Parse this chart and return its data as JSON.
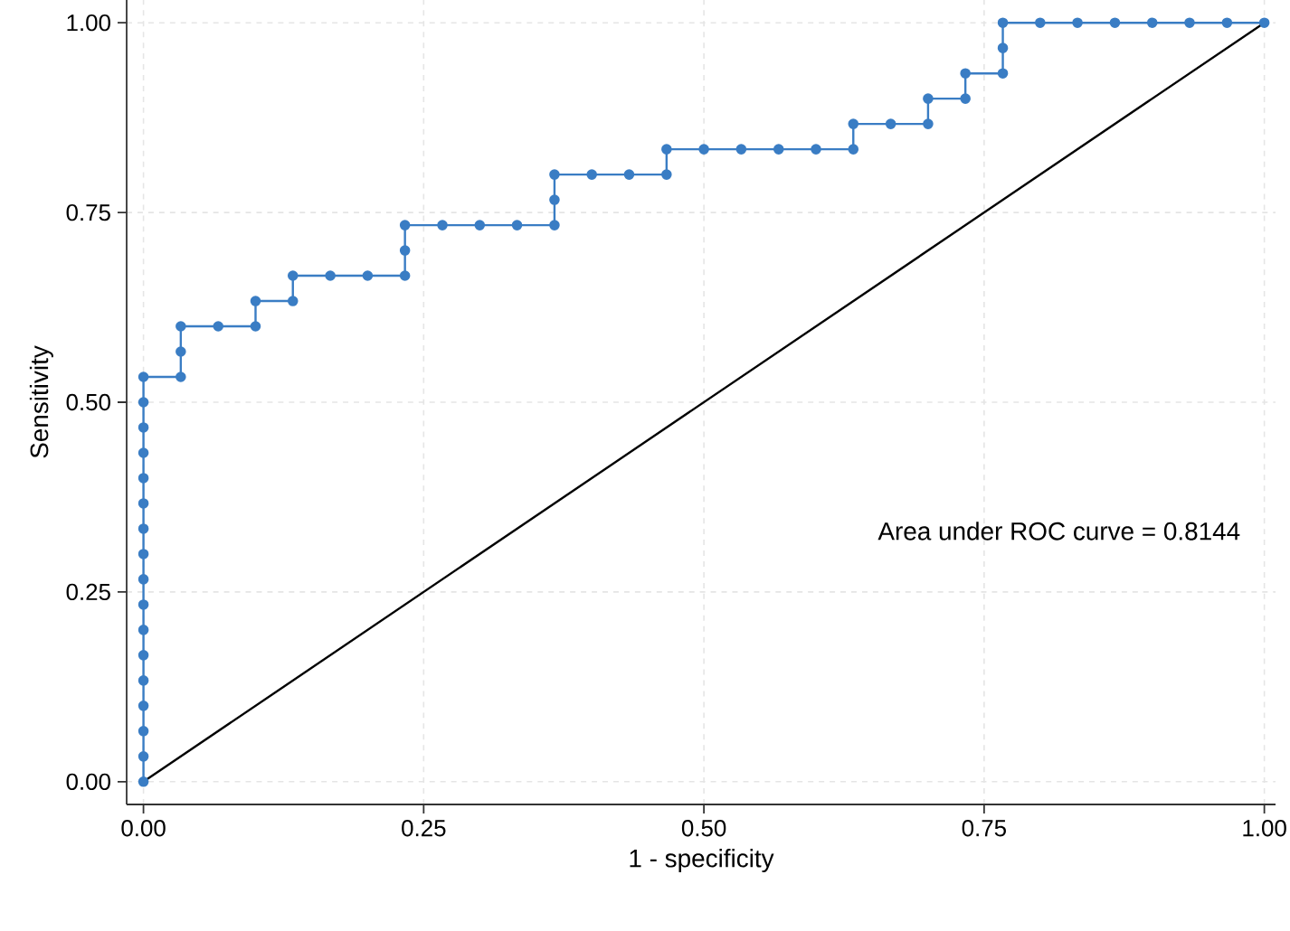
{
  "chart_data": {
    "type": "line",
    "xlabel": "1 - specificity",
    "ylabel": "Sensitivity",
    "annotations": [
      "Area under ROC curve = 0.8144"
    ],
    "series": [
      {
        "color": "#3a7dc4",
        "marker": "circle",
        "line_style": "solid",
        "x": [
          0,
          0,
          0,
          0,
          0,
          0,
          0,
          0,
          0,
          0,
          0,
          0,
          0,
          0,
          0,
          0,
          0,
          0.0333,
          0.0333,
          0.0333,
          0.0667,
          0.1,
          0.1,
          0.1333,
          0.1333,
          0.1667,
          0.2,
          0.2333,
          0.2333,
          0.2333,
          0.2667,
          0.3,
          0.3333,
          0.3667,
          0.3667,
          0.3667,
          0.4,
          0.4333,
          0.4667,
          0.4667,
          0.5,
          0.5333,
          0.5667,
          0.6,
          0.6333,
          0.6333,
          0.6667,
          0.7,
          0.7,
          0.7333,
          0.7333,
          0.7667,
          0.7667,
          0.7667,
          0.8,
          0.8333,
          0.8667,
          0.9,
          0.9333,
          0.9667,
          1
        ],
        "values": [
          0,
          0.0333,
          0.0667,
          0.1,
          0.1333,
          0.1667,
          0.2,
          0.2333,
          0.2667,
          0.3,
          0.3333,
          0.3667,
          0.4,
          0.4333,
          0.4667,
          0.5,
          0.5333,
          0.5333,
          0.5667,
          0.6,
          0.6,
          0.6,
          0.6333,
          0.6333,
          0.6667,
          0.6667,
          0.6667,
          0.6667,
          0.7,
          0.7333,
          0.7333,
          0.7333,
          0.7333,
          0.7333,
          0.7667,
          0.8,
          0.8,
          0.8,
          0.8,
          0.8333,
          0.8333,
          0.8333,
          0.8333,
          0.8333,
          0.8333,
          0.8667,
          0.8667,
          0.8667,
          0.9,
          0.9,
          0.9333,
          0.9333,
          0.9667,
          1,
          1,
          1,
          1,
          1,
          1,
          1,
          1
        ]
      },
      {
        "color": "#000000",
        "marker": "none",
        "line_style": "solid",
        "x": [
          0,
          1
        ],
        "values": [
          0,
          1
        ]
      }
    ],
    "xlim": [
      -0.015,
      1.01
    ],
    "ylim": [
      -0.03,
      1.03
    ],
    "xticks": [
      {
        "value": 0,
        "label": "0.00"
      },
      {
        "value": 0.25,
        "label": "0.25"
      },
      {
        "value": 0.5,
        "label": "0.50"
      },
      {
        "value": 0.75,
        "label": "0.75"
      },
      {
        "value": 1,
        "label": "1.00"
      }
    ],
    "yticks": [
      {
        "value": 0,
        "label": "0.00"
      },
      {
        "value": 0.25,
        "label": "0.25"
      },
      {
        "value": 0.5,
        "label": "0.50"
      },
      {
        "value": 0.75,
        "label": "0.75"
      },
      {
        "value": 1,
        "label": "1.00"
      }
    ],
    "grid": true
  }
}
